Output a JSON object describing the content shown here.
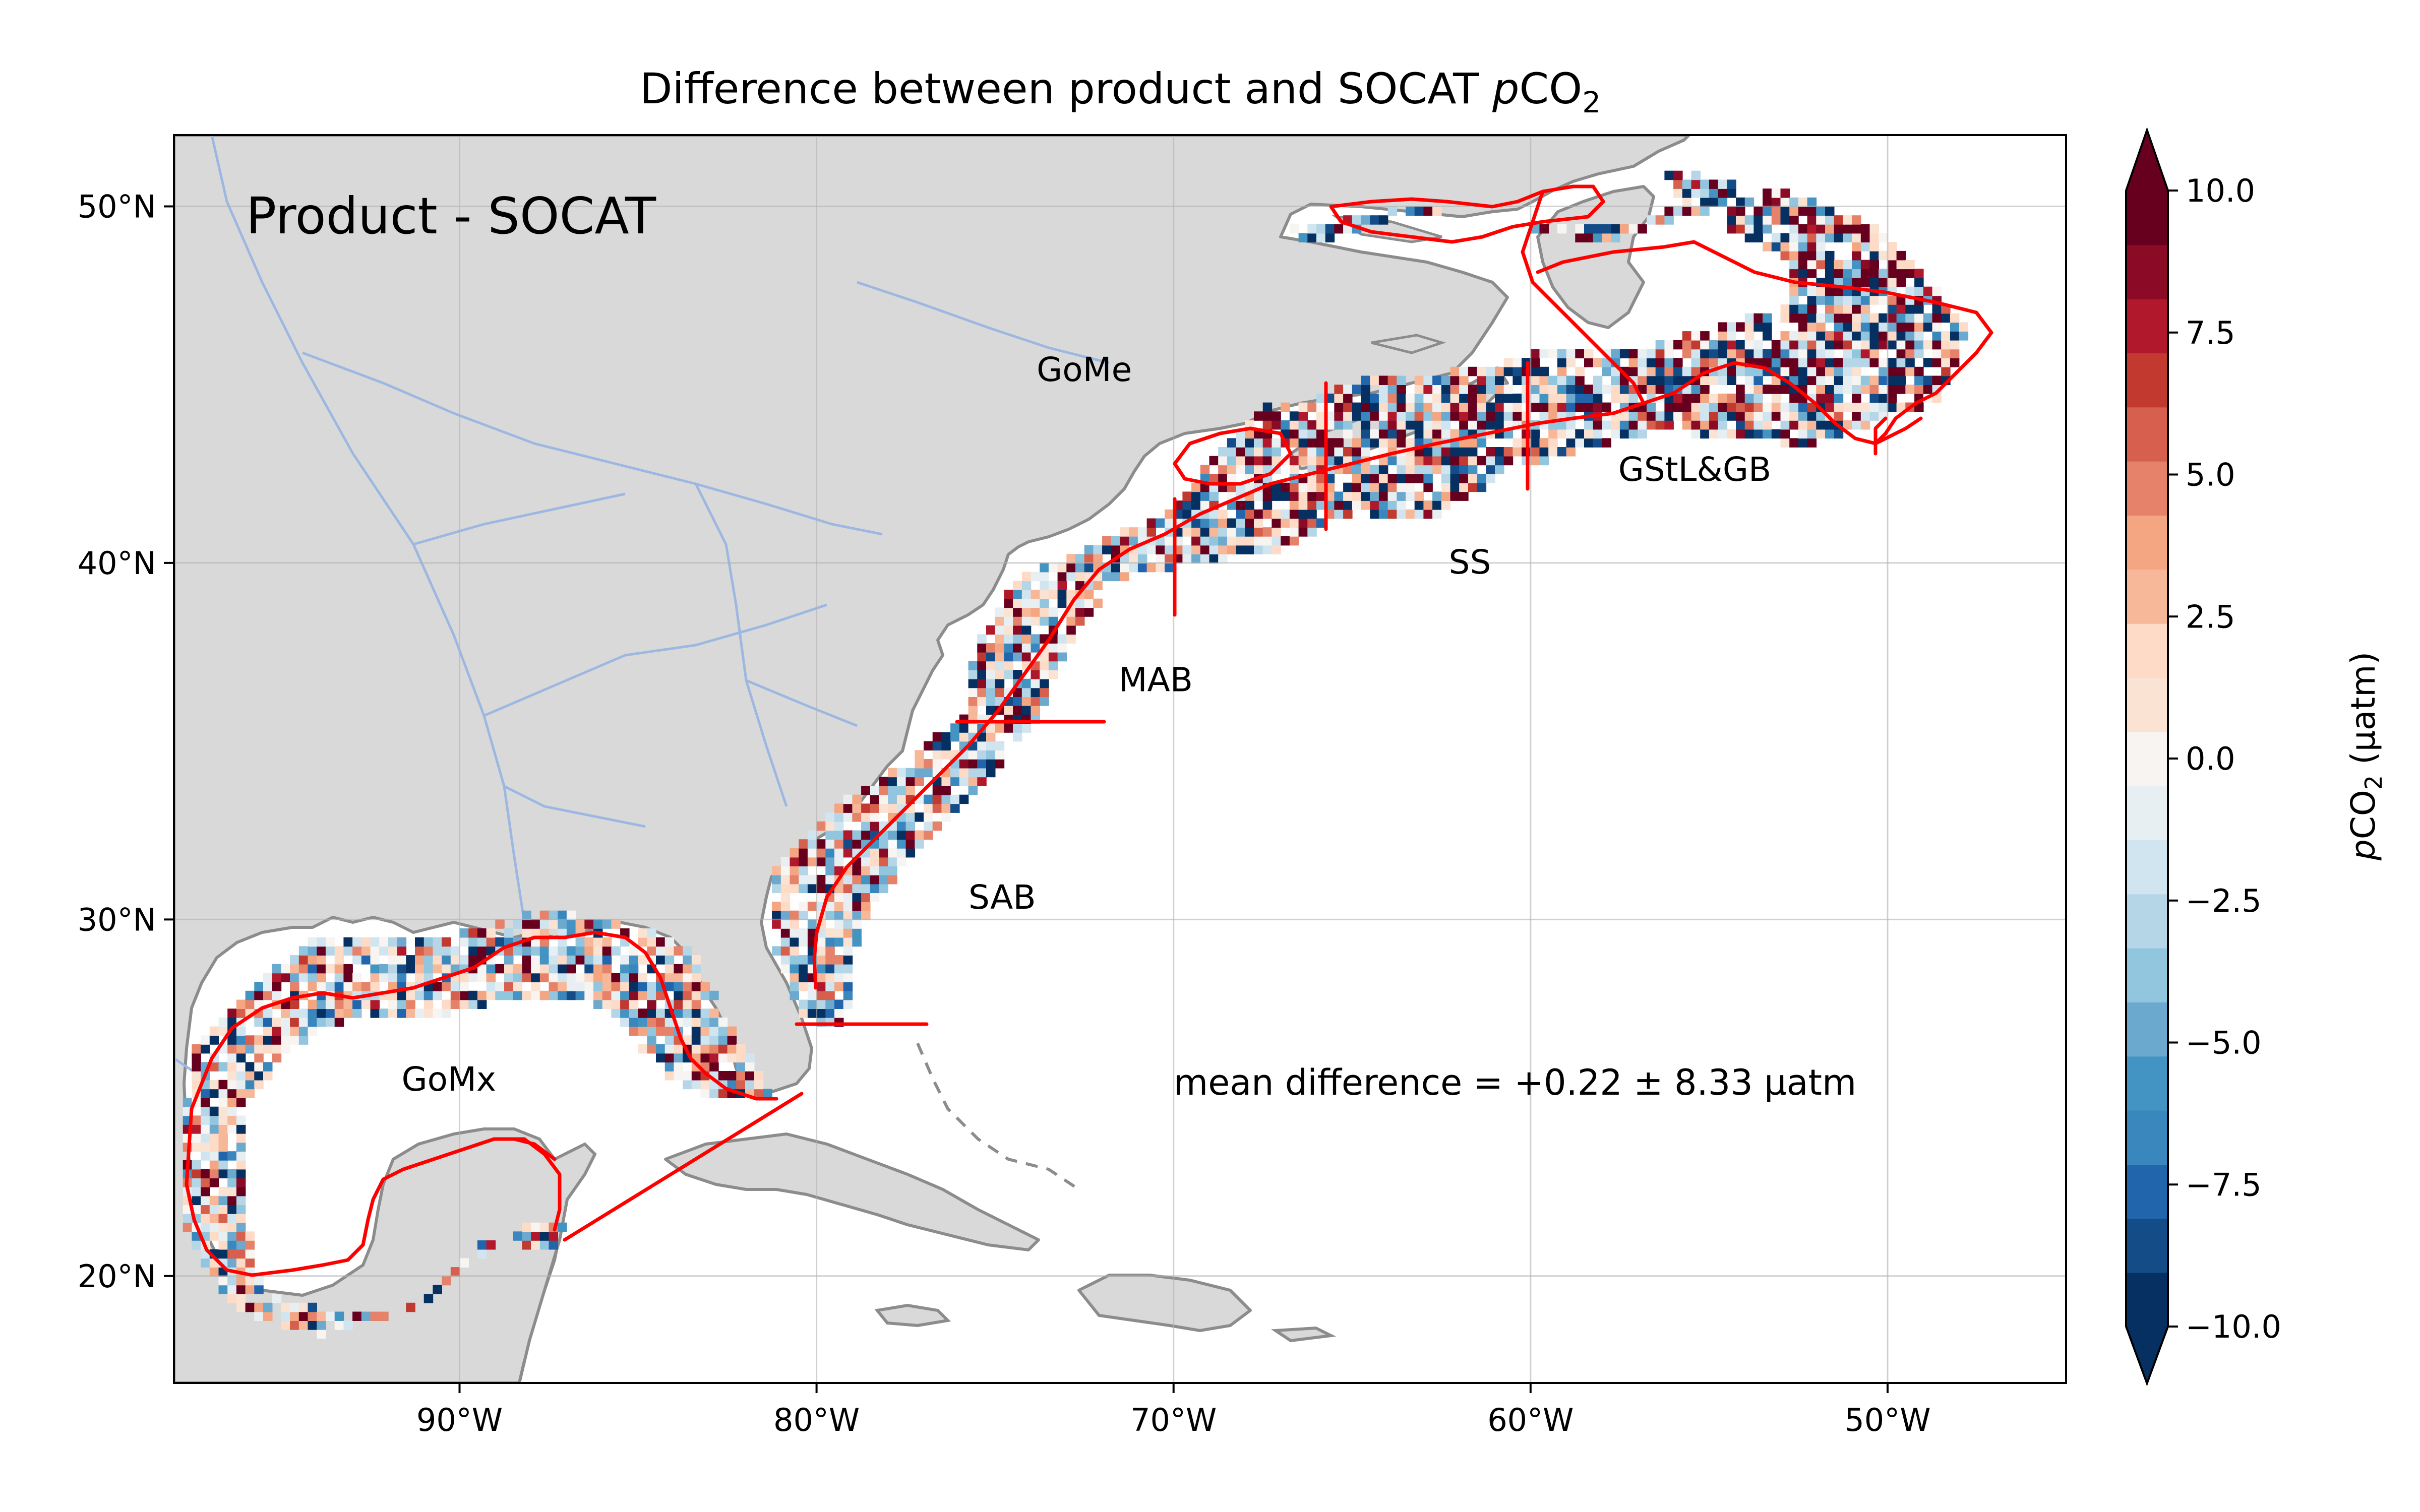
{
  "title": {
    "text": "Difference between product and SOCAT ",
    "italic": "p",
    "rest": "CO",
    "sub": "2"
  },
  "panel_label": "Product - SOCAT",
  "annotation": "mean difference = +0.22 ± 8.33 μatm",
  "map": {
    "lon_range": [
      -98,
      -45
    ],
    "lat_range": [
      17,
      52
    ],
    "lon_ticks": [
      {
        "value": -90,
        "label": "90°W"
      },
      {
        "value": -80,
        "label": "80°W"
      },
      {
        "value": -70,
        "label": "70°W"
      },
      {
        "value": -60,
        "label": "60°W"
      },
      {
        "value": -50,
        "label": "50°W"
      }
    ],
    "lat_ticks": [
      {
        "value": 20,
        "label": "20°N"
      },
      {
        "value": 30,
        "label": "30°N"
      },
      {
        "value": 40,
        "label": "40°N"
      },
      {
        "value": 50,
        "label": "50°N"
      }
    ],
    "gridlines": true,
    "colors": {
      "land": "#d9d9d9",
      "coast": "#8c8c8c",
      "rivers": "#9db8e0",
      "boundaries": "#ff0000",
      "ocean": "#ffffff"
    },
    "regions": [
      {
        "label": "GoMe",
        "lon": -72.5,
        "lat": 45.1
      },
      {
        "label": "GStL&GB",
        "lon": -55.4,
        "lat": 42.3
      },
      {
        "label": "SS",
        "lon": -61.7,
        "lat": 39.7
      },
      {
        "label": "MAB",
        "lon": -70.5,
        "lat": 36.4
      },
      {
        "label": "SAB",
        "lon": -74.8,
        "lat": 30.3
      },
      {
        "label": "GoMx",
        "lon": -90.3,
        "lat": 25.2
      }
    ]
  },
  "colorbar": {
    "label_italic": "p",
    "label_rest": "CO",
    "label_sub": "2",
    "label_units": " (μatm)",
    "min": -10,
    "max": 10,
    "extend": "both",
    "ticks": [
      {
        "value": 10,
        "label": "10.0"
      },
      {
        "value": 7.5,
        "label": "7.5"
      },
      {
        "value": 5,
        "label": "5.0"
      },
      {
        "value": 2.5,
        "label": "2.5"
      },
      {
        "value": 0,
        "label": "0.0"
      },
      {
        "value": -2.5,
        "label": "−2.5"
      },
      {
        "value": -5,
        "label": "−5.0"
      },
      {
        "value": -7.5,
        "label": "−7.5"
      },
      {
        "value": -10,
        "label": "−10.0"
      }
    ],
    "colormap": [
      "#053061",
      "#134c87",
      "#2166ac",
      "#3a87bd",
      "#4393c3",
      "#6ba9cf",
      "#92c5de",
      "#b4d6e7",
      "#d1e5f0",
      "#e8eff3",
      "#f7f4f1",
      "#fbe3d4",
      "#fddbc7",
      "#f7b799",
      "#f4a582",
      "#e6826a",
      "#d6604d",
      "#c1392f",
      "#b2182b",
      "#8b0a25",
      "#67001f"
    ]
  },
  "chart_data": {
    "type": "heatmap",
    "title": "Difference between product and SOCAT pCO2",
    "variable": "pCO2 difference (product - SOCAT)",
    "units": "μatm",
    "summary": {
      "mean": 0.22,
      "std": 8.33
    },
    "value_range": [
      -10,
      10
    ],
    "cell_size_deg": 0.25,
    "grid": "gridded differences along the North American east coast and Gulf of Mexico shelf (shown as colored cells)"
  }
}
